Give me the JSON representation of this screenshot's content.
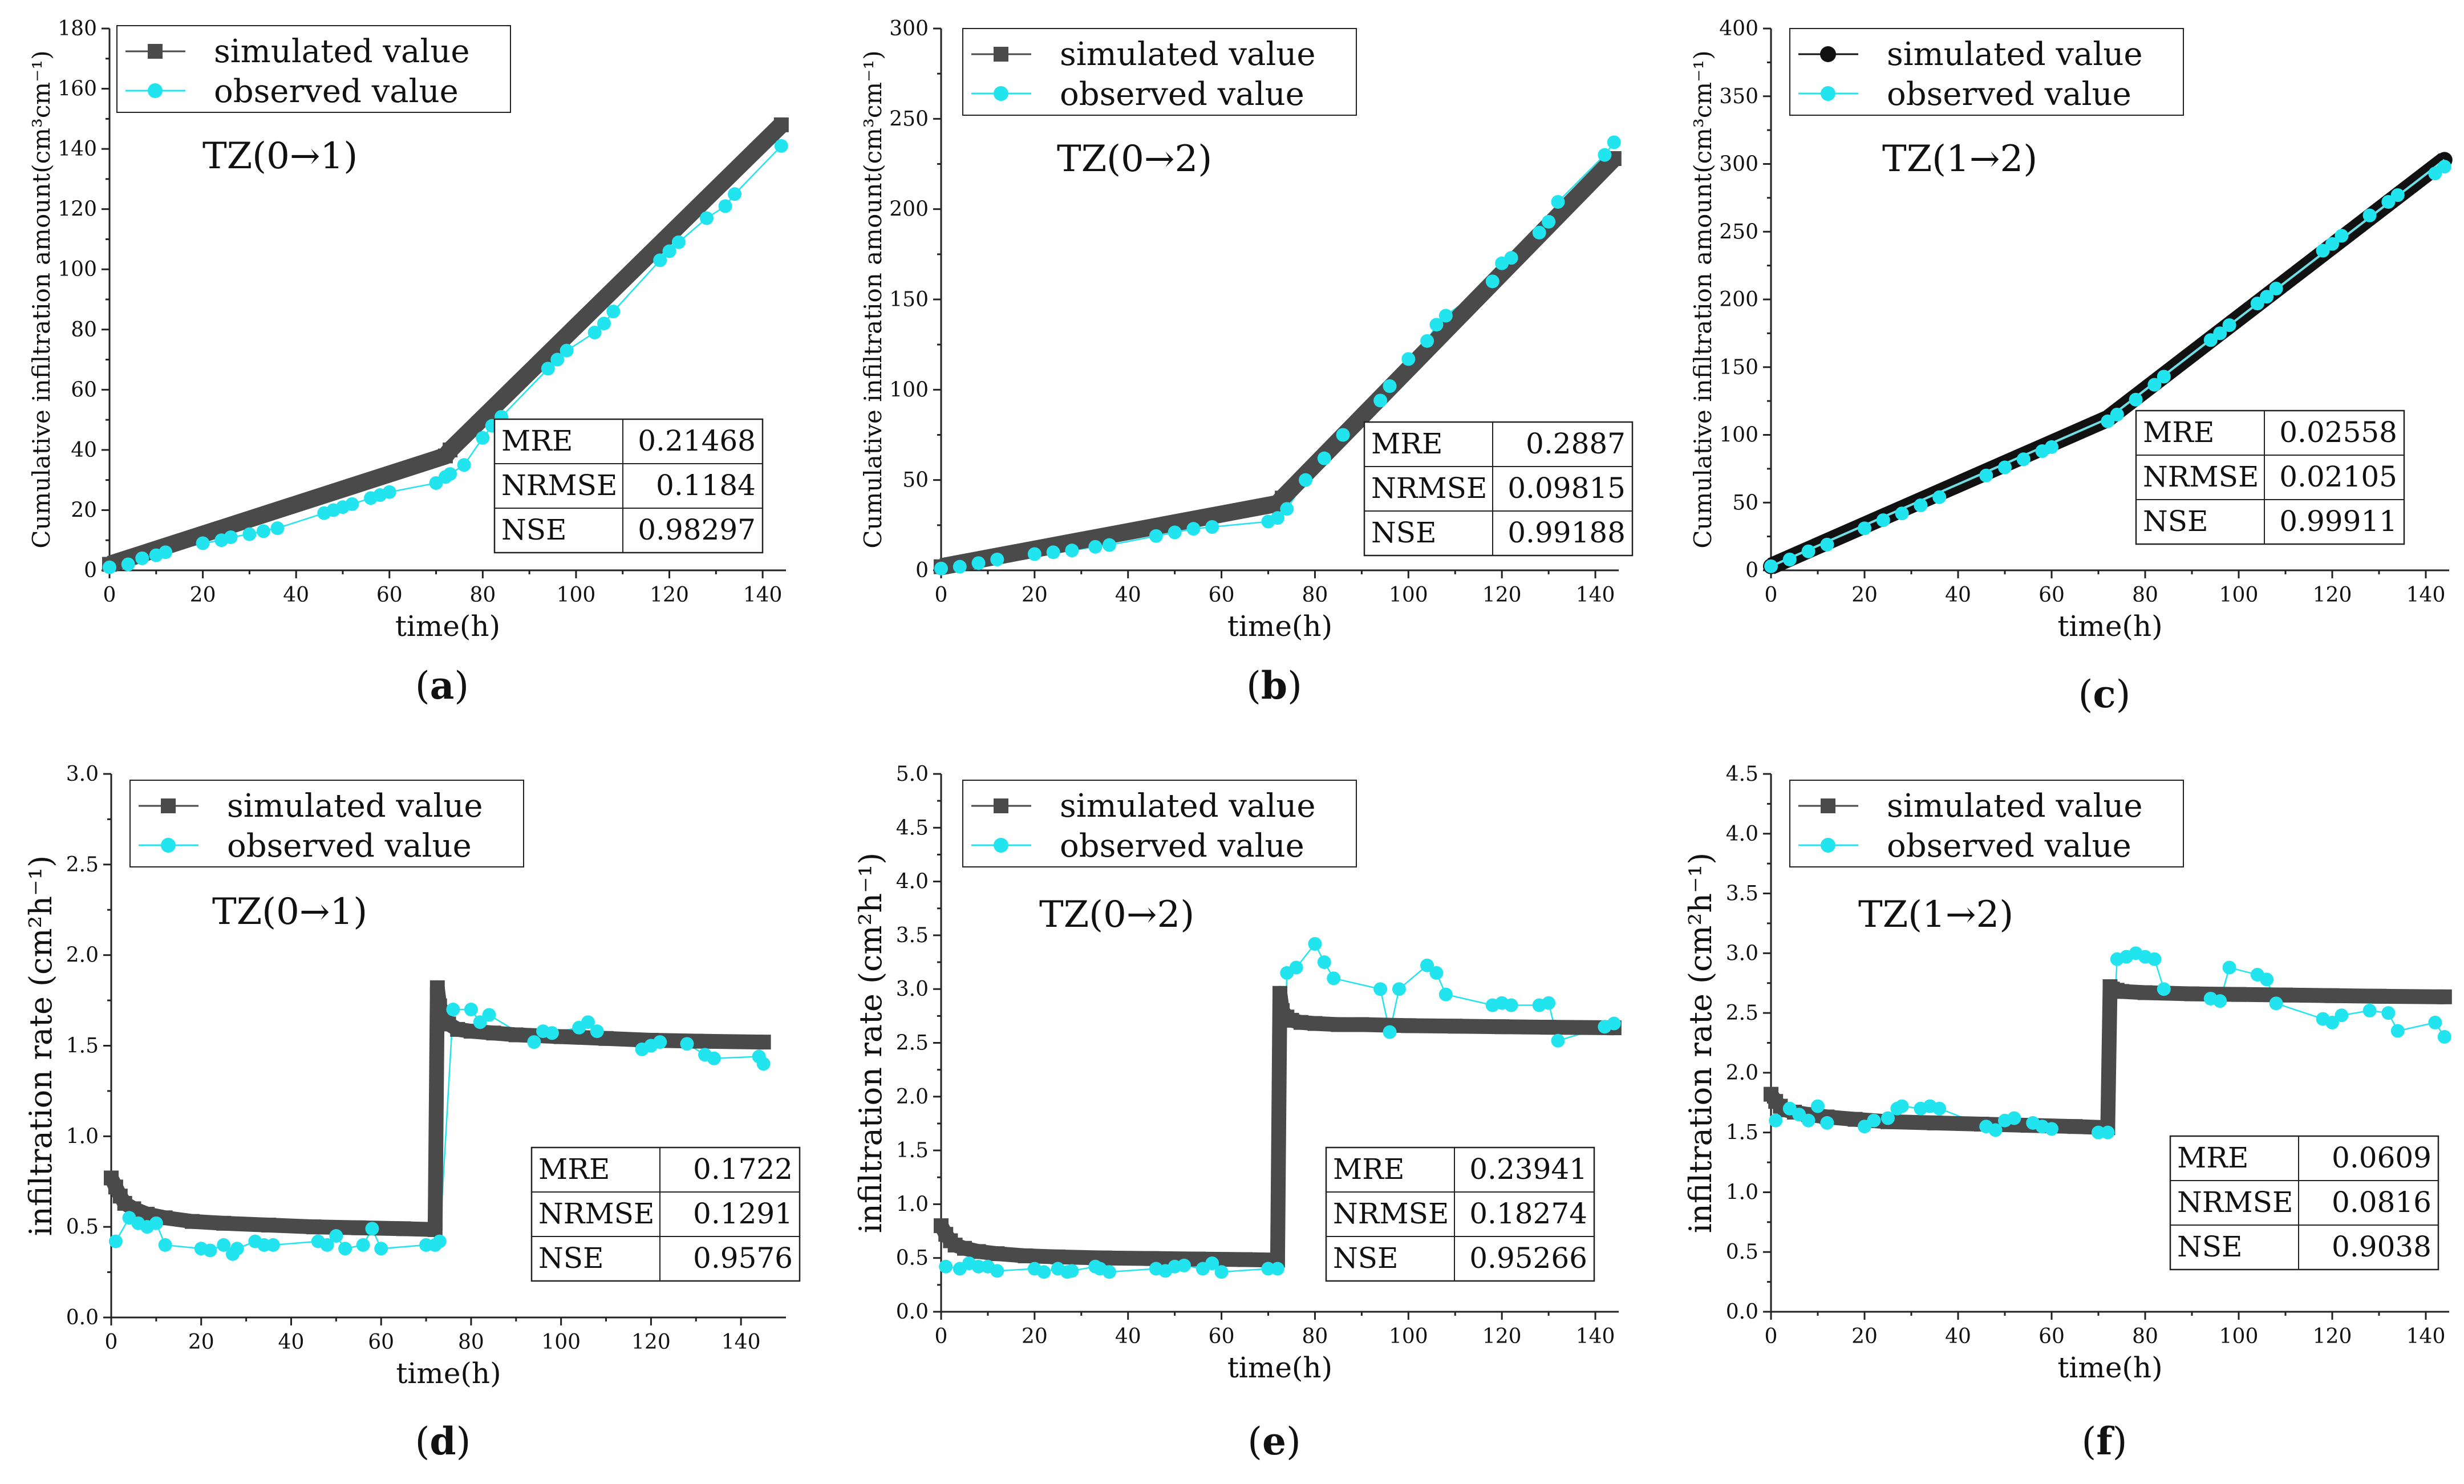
{
  "colors": {
    "simulated": "#4a4a4a",
    "simulated_c": "#111111",
    "observed": "#22e4ee",
    "axis": "#222222"
  },
  "legend": {
    "simulated": "simulated value",
    "observed": "observed value"
  },
  "stats_labels": [
    "MRE",
    "NRMSE",
    "NSE"
  ],
  "axes": {
    "x_label": "time(h)",
    "y_cum_label": "Cumulative infiltration amount(cm³cm⁻¹)",
    "y_rate_label": "infiltration rate (cm²h⁻¹)"
  },
  "chart_data": [
    {
      "id": "a",
      "panel_label": "a",
      "type": "line",
      "zone": "TZ(0→1)",
      "xlim": [
        0,
        145
      ],
      "ylim": [
        0,
        180
      ],
      "xticks": [
        0,
        20,
        40,
        60,
        80,
        100,
        120,
        140
      ],
      "yticks": [
        0,
        20,
        40,
        60,
        80,
        100,
        120,
        140,
        160,
        180
      ],
      "stats": [
        "0.21468",
        "0.1184",
        "0.98297"
      ],
      "sim_marker": "square",
      "series": [
        {
          "name": "simulated value",
          "x": [
            0,
            72,
            73,
            144
          ],
          "y": [
            2,
            38,
            40,
            148
          ]
        },
        {
          "name": "observed value",
          "x": [
            0,
            4,
            7,
            10,
            12,
            20,
            24,
            26,
            30,
            33,
            36,
            46,
            48,
            50,
            52,
            56,
            58,
            60,
            70,
            72,
            73,
            76,
            80,
            82,
            84,
            94,
            96,
            98,
            104,
            106,
            108,
            118,
            120,
            122,
            128,
            132,
            134,
            144
          ],
          "y": [
            1,
            2,
            4,
            5,
            6,
            9,
            10,
            11,
            12,
            13,
            14,
            19,
            20,
            21,
            22,
            24,
            25,
            26,
            29,
            31,
            32,
            35,
            44,
            48,
            51,
            67,
            70,
            73,
            79,
            82,
            86,
            103,
            106,
            109,
            117,
            121,
            125,
            141
          ]
        }
      ]
    },
    {
      "id": "b",
      "panel_label": "b",
      "type": "line",
      "zone": "TZ(0→2)",
      "xlim": [
        0,
        145
      ],
      "ylim": [
        0,
        300
      ],
      "xticks": [
        0,
        20,
        40,
        60,
        80,
        100,
        120,
        140
      ],
      "yticks": [
        0,
        50,
        100,
        150,
        200,
        250,
        300
      ],
      "stats": [
        "0.2887",
        "0.09815",
        "0.99188"
      ],
      "sim_marker": "square",
      "series": [
        {
          "name": "simulated value",
          "x": [
            0,
            72,
            73,
            144
          ],
          "y": [
            2,
            37,
            40,
            228
          ]
        },
        {
          "name": "observed value",
          "x": [
            0,
            4,
            8,
            12,
            20,
            24,
            28,
            33,
            36,
            46,
            50,
            54,
            58,
            70,
            72,
            74,
            78,
            82,
            86,
            94,
            96,
            100,
            104,
            106,
            108,
            118,
            120,
            122,
            128,
            130,
            132,
            142,
            144
          ],
          "y": [
            1,
            2,
            4,
            6,
            9,
            10,
            11,
            13,
            14,
            19,
            21,
            23,
            24,
            27,
            29,
            34,
            50,
            62,
            75,
            94,
            102,
            117,
            127,
            136,
            141,
            160,
            170,
            173,
            187,
            193,
            204,
            230,
            237
          ]
        }
      ]
    },
    {
      "id": "c",
      "panel_label": "c",
      "type": "line",
      "zone": "TZ(1→2)",
      "xlim": [
        0,
        145
      ],
      "ylim": [
        0,
        400
      ],
      "xticks": [
        0,
        20,
        40,
        60,
        80,
        100,
        120,
        140
      ],
      "yticks": [
        0,
        50,
        100,
        150,
        200,
        250,
        300,
        350,
        400
      ],
      "stats": [
        "0.02558",
        "0.02105",
        "0.99911"
      ],
      "sim_marker": "circle",
      "series": [
        {
          "name": "simulated value",
          "x": [
            0,
            72,
            144
          ],
          "y": [
            3,
            112,
            303
          ]
        },
        {
          "name": "observed value",
          "x": [
            0,
            4,
            8,
            12,
            20,
            24,
            28,
            32,
            36,
            46,
            50,
            54,
            58,
            60,
            72,
            74,
            78,
            82,
            84,
            94,
            96,
            98,
            104,
            106,
            108,
            118,
            120,
            122,
            128,
            132,
            134,
            142,
            144
          ],
          "y": [
            3,
            8,
            14,
            19,
            31,
            37,
            42,
            48,
            54,
            70,
            76,
            82,
            88,
            91,
            110,
            115,
            126,
            137,
            143,
            170,
            175,
            181,
            197,
            202,
            208,
            236,
            241,
            247,
            262,
            272,
            277,
            293,
            298
          ]
        }
      ]
    },
    {
      "id": "d",
      "panel_label": "d",
      "type": "line",
      "zone": "TZ(0→1)",
      "xlim": [
        0,
        150
      ],
      "ylim": [
        0,
        3.0
      ],
      "xticks": [
        0,
        20,
        40,
        60,
        80,
        100,
        120,
        140
      ],
      "yticks": [
        0.0,
        0.5,
        1.0,
        1.5,
        2.0,
        2.5,
        3.0
      ],
      "stats": [
        "0.1722",
        "0.1291",
        "0.9576"
      ],
      "sim_marker": "square",
      "series": [
        {
          "name": "simulated value",
          "x": [
            0,
            1,
            2,
            3,
            5,
            8,
            12,
            18,
            25,
            35,
            45,
            55,
            65,
            72,
            72.5,
            73,
            74,
            75,
            77,
            80,
            85,
            90,
            100,
            110,
            120,
            130,
            145
          ],
          "y": [
            0.77,
            0.72,
            0.67,
            0.63,
            0.6,
            0.57,
            0.55,
            0.53,
            0.52,
            0.51,
            0.5,
            0.495,
            0.49,
            0.485,
            1.82,
            1.72,
            1.66,
            1.62,
            1.59,
            1.58,
            1.57,
            1.56,
            1.55,
            1.54,
            1.53,
            1.525,
            1.52
          ]
        },
        {
          "name": "observed value",
          "x": [
            1,
            4,
            6,
            8,
            10,
            12,
            20,
            22,
            25,
            27,
            28,
            32,
            34,
            36,
            46,
            48,
            50,
            52,
            56,
            58,
            60,
            70,
            72,
            73,
            76,
            80,
            82,
            84,
            94,
            96,
            98,
            104,
            106,
            108,
            118,
            120,
            122,
            128,
            132,
            134,
            144,
            145
          ],
          "y": [
            0.42,
            0.55,
            0.52,
            0.5,
            0.52,
            0.4,
            0.38,
            0.37,
            0.4,
            0.35,
            0.38,
            0.42,
            0.4,
            0.4,
            0.42,
            0.4,
            0.45,
            0.38,
            0.4,
            0.49,
            0.38,
            0.4,
            0.4,
            0.42,
            1.7,
            1.7,
            1.63,
            1.67,
            1.52,
            1.58,
            1.57,
            1.6,
            1.63,
            1.58,
            1.48,
            1.5,
            1.52,
            1.51,
            1.45,
            1.43,
            1.44,
            1.4
          ]
        }
      ]
    },
    {
      "id": "e",
      "panel_label": "e",
      "type": "line",
      "zone": "TZ(0→2)",
      "xlim": [
        0,
        145
      ],
      "ylim": [
        0,
        5.0
      ],
      "xticks": [
        0,
        20,
        40,
        60,
        80,
        100,
        120,
        140
      ],
      "yticks": [
        0.0,
        0.5,
        1.0,
        1.5,
        2.0,
        2.5,
        3.0,
        3.5,
        4.0,
        4.5,
        5.0
      ],
      "stats": [
        "0.23941",
        "0.18274",
        "0.95266"
      ],
      "sim_marker": "square",
      "series": [
        {
          "name": "simulated value",
          "x": [
            0,
            1,
            2,
            3,
            5,
            8,
            12,
            18,
            25,
            35,
            45,
            55,
            65,
            72,
            72.5,
            73,
            74,
            75,
            77,
            80,
            85,
            90,
            100,
            110,
            120,
            130,
            144
          ],
          "y": [
            0.8,
            0.72,
            0.66,
            0.62,
            0.59,
            0.56,
            0.54,
            0.52,
            0.51,
            0.5,
            0.495,
            0.49,
            0.485,
            0.48,
            2.96,
            2.8,
            2.74,
            2.71,
            2.69,
            2.68,
            2.67,
            2.67,
            2.66,
            2.655,
            2.65,
            2.645,
            2.64
          ]
        },
        {
          "name": "observed value",
          "x": [
            1,
            4,
            6,
            8,
            10,
            12,
            20,
            22,
            25,
            27,
            28,
            33,
            34,
            36,
            46,
            48,
            50,
            52,
            56,
            58,
            60,
            70,
            72,
            74,
            76,
            80,
            82,
            84,
            94,
            96,
            98,
            104,
            106,
            108,
            118,
            120,
            122,
            128,
            130,
            132,
            142,
            144
          ],
          "y": [
            0.42,
            0.4,
            0.45,
            0.42,
            0.42,
            0.38,
            0.4,
            0.37,
            0.4,
            0.37,
            0.38,
            0.42,
            0.4,
            0.37,
            0.4,
            0.38,
            0.42,
            0.43,
            0.4,
            0.45,
            0.37,
            0.4,
            0.4,
            3.15,
            3.2,
            3.42,
            3.25,
            3.1,
            3.0,
            2.6,
            3.0,
            3.22,
            3.15,
            2.95,
            2.85,
            2.87,
            2.85,
            2.85,
            2.87,
            2.52,
            2.65,
            2.68
          ]
        }
      ]
    },
    {
      "id": "f",
      "panel_label": "f",
      "type": "line",
      "zone": "TZ(1→2)",
      "xlim": [
        0,
        145
      ],
      "ylim": [
        0,
        4.5
      ],
      "xticks": [
        0,
        20,
        40,
        60,
        80,
        100,
        120,
        140
      ],
      "yticks": [
        0.0,
        0.5,
        1.0,
        1.5,
        2.0,
        2.5,
        3.0,
        3.5,
        4.0,
        4.5
      ],
      "stats": [
        "0.0609",
        "0.0816",
        "0.9038"
      ],
      "sim_marker": "square",
      "series": [
        {
          "name": "simulated value",
          "x": [
            0,
            1,
            2,
            3,
            5,
            8,
            12,
            18,
            25,
            35,
            45,
            55,
            65,
            72,
            72.5,
            73,
            74,
            75,
            80,
            90,
            100,
            110,
            120,
            130,
            144
          ],
          "y": [
            1.82,
            1.76,
            1.72,
            1.69,
            1.67,
            1.65,
            1.63,
            1.61,
            1.59,
            1.58,
            1.57,
            1.56,
            1.55,
            1.54,
            2.72,
            2.7,
            2.69,
            2.68,
            2.67,
            2.66,
            2.655,
            2.65,
            2.645,
            2.64,
            2.635
          ]
        },
        {
          "name": "observed value",
          "x": [
            1,
            4,
            6,
            8,
            10,
            12,
            20,
            22,
            25,
            27,
            28,
            32,
            34,
            36,
            46,
            48,
            50,
            52,
            56,
            58,
            60,
            70,
            72,
            74,
            76,
            78,
            80,
            82,
            84,
            94,
            96,
            98,
            104,
            106,
            108,
            118,
            120,
            122,
            128,
            132,
            134,
            142,
            144
          ],
          "y": [
            1.6,
            1.7,
            1.65,
            1.6,
            1.72,
            1.58,
            1.55,
            1.6,
            1.62,
            1.7,
            1.72,
            1.7,
            1.72,
            1.7,
            1.55,
            1.52,
            1.6,
            1.62,
            1.58,
            1.55,
            1.53,
            1.5,
            1.5,
            2.95,
            2.97,
            3.0,
            2.97,
            2.95,
            2.7,
            2.62,
            2.6,
            2.88,
            2.82,
            2.78,
            2.58,
            2.45,
            2.42,
            2.48,
            2.52,
            2.5,
            2.35,
            2.42,
            2.3
          ]
        }
      ]
    }
  ]
}
